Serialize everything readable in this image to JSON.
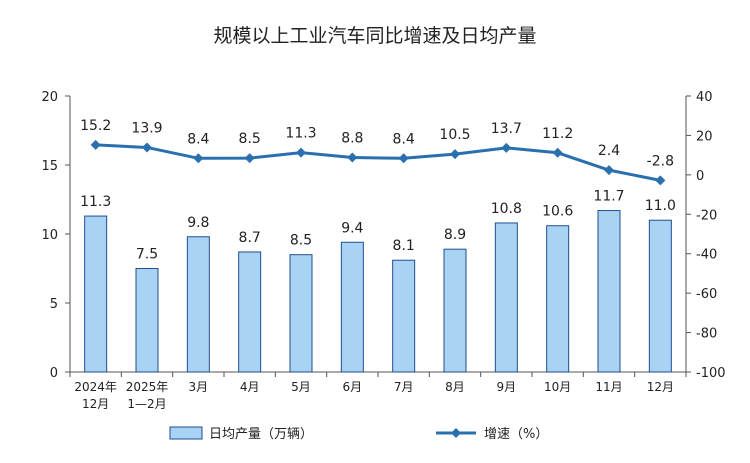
{
  "chart_data": {
    "type": "bar+line",
    "title": "规模以上工业汽车同比增速及日均产量",
    "categories": [
      [
        "2024年",
        "12月"
      ],
      [
        "2025年",
        "1—2月"
      ],
      [
        "3月"
      ],
      [
        "4月"
      ],
      [
        "5月"
      ],
      [
        "6月"
      ],
      [
        "7月"
      ],
      [
        "8月"
      ],
      [
        "9月"
      ],
      [
        "10月"
      ],
      [
        "11月"
      ],
      [
        "12月"
      ]
    ],
    "series": [
      {
        "name": "日均产量（万辆）",
        "type": "bar",
        "axis": "left",
        "values": [
          11.3,
          7.5,
          9.8,
          8.7,
          8.5,
          9.4,
          8.1,
          8.9,
          10.8,
          10.6,
          11.7,
          11.0
        ],
        "labels": [
          "11.3",
          "7.5",
          "9.8",
          "8.7",
          "8.5",
          "9.4",
          "8.1",
          "8.9",
          "10.8",
          "10.6",
          "11.7",
          "11.0"
        ]
      },
      {
        "name": "增速（%）",
        "type": "line",
        "axis": "right",
        "values": [
          15.2,
          13.9,
          8.4,
          8.5,
          11.3,
          8.8,
          8.4,
          10.5,
          13.7,
          11.2,
          2.4,
          -2.8
        ],
        "labels": [
          "15.2",
          "13.9",
          "8.4",
          "8.5",
          "11.3",
          "8.8",
          "8.4",
          "10.5",
          "13.7",
          "11.2",
          "2.4",
          "-2.8"
        ]
      }
    ],
    "left_axis": {
      "ylim": [
        0,
        20
      ],
      "ticks": [
        0,
        5,
        10,
        15,
        20
      ]
    },
    "right_axis": {
      "ylim": [
        -100,
        40
      ],
      "ticks": [
        -100,
        -80,
        -60,
        -40,
        -20,
        0,
        20,
        40
      ]
    },
    "legend": {
      "position": "bottom"
    },
    "colors": {
      "bar_fill": "#a9d3f5",
      "bar_stroke": "#1f4f8f",
      "line": "#2a6fae"
    }
  }
}
